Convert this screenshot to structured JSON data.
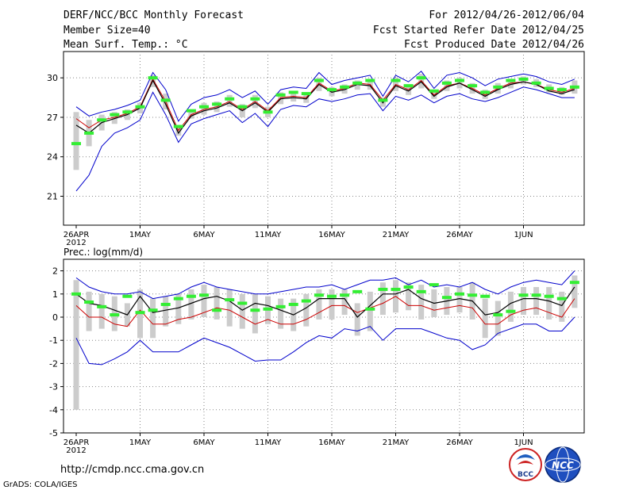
{
  "header": {
    "title": "DERF/NCC/BCC Monthly Forecast",
    "member_size": "Member Size=40",
    "variable": "Mean Surf. Temp.: °C",
    "forecast_range": "For 2012/04/26-2012/06/04",
    "start_date": "Fcst Started Refer Date 2012/04/25",
    "produced_date": "Fcst Produced Date 2012/04/26"
  },
  "footer": {
    "url": "http://cmdp.ncc.cma.gov.cn",
    "credit": "GrADS: COLA/IGES",
    "logo1_text": "BCC",
    "logo2_text": "NCC"
  },
  "colors": {
    "envelope": "#0000cc",
    "median": "#cc0000",
    "mean": "#000000",
    "observed_marker": "#33ee33",
    "spread_box": "#cccccc",
    "grid": "#888888"
  },
  "chart_data": [
    {
      "type": "line",
      "title": "Mean Surf. Temp.: °C",
      "x_days": 40,
      "xtick_days": [
        0,
        5,
        10,
        15,
        20,
        25,
        30,
        35
      ],
      "xtick_labels": [
        "26APR",
        "1MAY",
        "6MAY",
        "11MAY",
        "16MAY",
        "21MAY",
        "26MAY",
        "1JUN"
      ],
      "x_year_label": "2012",
      "ylim": [
        18.8,
        32
      ],
      "yticks": [
        21,
        24,
        27,
        30
      ],
      "series": [
        {
          "name": "max",
          "values": [
            27.8,
            27.1,
            27.4,
            27.6,
            27.9,
            28.3,
            30.4,
            29.1,
            26.7,
            28.0,
            28.5,
            28.7,
            29.1,
            28.5,
            29.0,
            28.0,
            29.1,
            29.3,
            29.2,
            30.4,
            29.5,
            29.8,
            30.0,
            30.2,
            28.6,
            30.2,
            29.7,
            30.5,
            29.2,
            30.2,
            30.4,
            30.0,
            29.4,
            29.9,
            30.1,
            30.3,
            30.1,
            29.7,
            29.5,
            29.9
          ]
        },
        {
          "name": "min",
          "values": [
            21.4,
            22.6,
            24.8,
            25.8,
            26.2,
            26.8,
            28.9,
            27.2,
            25.1,
            26.5,
            26.9,
            27.2,
            27.5,
            26.6,
            27.3,
            26.3,
            27.6,
            27.9,
            27.8,
            28.4,
            28.2,
            28.4,
            28.7,
            28.8,
            27.5,
            28.6,
            28.3,
            28.7,
            28.1,
            28.6,
            28.8,
            28.4,
            28.2,
            28.5,
            28.9,
            29.3,
            29.1,
            28.8,
            28.5,
            28.5
          ]
        },
        {
          "name": "median",
          "values": [
            26.9,
            26.2,
            26.8,
            27.0,
            27.3,
            27.8,
            29.9,
            28.2,
            26.0,
            27.2,
            27.6,
            27.8,
            28.2,
            27.6,
            28.2,
            27.5,
            28.5,
            28.6,
            28.5,
            29.6,
            29.0,
            29.2,
            29.6,
            29.5,
            28.3,
            29.5,
            29.1,
            29.8,
            28.7,
            29.4,
            29.6,
            29.2,
            28.7,
            29.2,
            29.6,
            29.7,
            29.5,
            29.1,
            28.9,
            29.2
          ]
        },
        {
          "name": "mean",
          "values": [
            26.4,
            25.8,
            26.6,
            26.9,
            27.2,
            27.7,
            29.8,
            28.0,
            25.8,
            27.1,
            27.5,
            27.7,
            28.1,
            27.5,
            28.1,
            27.4,
            28.4,
            28.5,
            28.4,
            29.5,
            28.9,
            29.1,
            29.5,
            29.4,
            28.1,
            29.4,
            29.0,
            29.7,
            28.6,
            29.3,
            29.6,
            29.1,
            28.6,
            29.1,
            29.5,
            29.7,
            29.5,
            29.0,
            28.8,
            29.1
          ]
        },
        {
          "name": "observed",
          "values": [
            25.0,
            25.8,
            26.8,
            27.2,
            27.4,
            27.8,
            30.0,
            28.3,
            26.3,
            27.5,
            27.8,
            28.0,
            28.4,
            27.8,
            28.4,
            27.4,
            28.7,
            28.9,
            28.8,
            29.8,
            29.1,
            29.3,
            29.6,
            29.8,
            28.3,
            29.8,
            29.4,
            30.0,
            29.0,
            29.6,
            29.8,
            29.4,
            28.9,
            29.3,
            29.8,
            29.9,
            29.6,
            29.2,
            29.1,
            29.3
          ]
        },
        {
          "name": "spread_low",
          "values": [
            23.0,
            24.8,
            26.0,
            26.5,
            26.8,
            27.3,
            29.3,
            27.6,
            25.6,
            26.9,
            27.2,
            27.4,
            27.8,
            27.0,
            27.7,
            27.0,
            28.0,
            28.2,
            28.1,
            29.0,
            28.6,
            28.8,
            29.1,
            29.1,
            27.8,
            29.0,
            28.7,
            29.2,
            28.4,
            29.0,
            29.2,
            28.8,
            28.4,
            28.8,
            29.2,
            29.5,
            29.3,
            28.9,
            28.7,
            28.8
          ]
        },
        {
          "name": "spread_high",
          "values": [
            27.4,
            26.8,
            27.2,
            27.4,
            27.6,
            28.1,
            30.2,
            28.8,
            26.3,
            27.6,
            28.1,
            28.2,
            28.7,
            28.0,
            28.7,
            27.8,
            28.9,
            29.0,
            28.9,
            30.0,
            29.3,
            29.5,
            29.8,
            29.8,
            28.5,
            30.0,
            29.5,
            30.3,
            29.0,
            29.8,
            30.0,
            29.6,
            29.1,
            29.6,
            29.9,
            30.1,
            29.9,
            29.5,
            29.3,
            29.8
          ]
        }
      ]
    },
    {
      "type": "line",
      "title": "Prec.: log(mm/d)",
      "x_days": 40,
      "xtick_days": [
        0,
        5,
        10,
        15,
        20,
        25,
        30,
        35
      ],
      "xtick_labels": [
        "26APR",
        "1MAY",
        "6MAY",
        "11MAY",
        "16MAY",
        "21MAY",
        "26MAY",
        "1JUN"
      ],
      "x_year_label": "2012",
      "ylim": [
        -5,
        2.5
      ],
      "yticks": [
        -5,
        -4,
        -3,
        -2,
        -1,
        0,
        1,
        2
      ],
      "series": [
        {
          "name": "max",
          "values": [
            1.7,
            1.3,
            1.1,
            1.0,
            1.0,
            1.1,
            0.8,
            0.9,
            1.0,
            1.3,
            1.5,
            1.3,
            1.2,
            1.1,
            1.0,
            1.0,
            1.1,
            1.2,
            1.3,
            1.3,
            1.4,
            1.2,
            1.4,
            1.6,
            1.6,
            1.7,
            1.4,
            1.6,
            1.3,
            1.4,
            1.3,
            1.5,
            1.2,
            1.0,
            1.3,
            1.5,
            1.6,
            1.5,
            1.4,
            2.0
          ]
        },
        {
          "name": "min",
          "values": [
            -0.9,
            -2.0,
            -2.05,
            -1.8,
            -1.5,
            -1.0,
            -1.5,
            -1.5,
            -1.5,
            -1.2,
            -0.9,
            -1.1,
            -1.3,
            -1.6,
            -1.9,
            -1.85,
            -1.85,
            -1.5,
            -1.1,
            -0.8,
            -0.9,
            -0.5,
            -0.6,
            -0.4,
            -1.0,
            -0.5,
            -0.5,
            -0.5,
            -0.7,
            -0.9,
            -1.0,
            -1.4,
            -1.2,
            -0.7,
            -0.5,
            -0.3,
            -0.3,
            -0.6,
            -0.6,
            0.0
          ]
        },
        {
          "name": "median",
          "values": [
            0.5,
            0.0,
            0.0,
            -0.3,
            -0.4,
            0.3,
            -0.3,
            -0.3,
            -0.1,
            0.0,
            0.2,
            0.4,
            0.3,
            0.0,
            -0.3,
            -0.1,
            -0.3,
            -0.3,
            -0.1,
            0.2,
            0.5,
            0.5,
            0.2,
            0.4,
            0.6,
            0.9,
            0.5,
            0.5,
            0.3,
            0.4,
            0.5,
            0.4,
            -0.3,
            -0.3,
            0.1,
            0.3,
            0.4,
            0.2,
            0.0,
            0.8
          ]
        },
        {
          "name": "mean",
          "values": [
            1.0,
            0.6,
            0.5,
            0.3,
            0.1,
            0.9,
            0.2,
            0.3,
            0.4,
            0.6,
            0.8,
            0.9,
            0.7,
            0.3,
            0.6,
            0.5,
            0.3,
            0.1,
            0.4,
            0.8,
            0.8,
            0.8,
            0.0,
            0.5,
            1.0,
            1.0,
            1.2,
            0.8,
            0.6,
            0.7,
            0.8,
            0.7,
            0.1,
            0.2,
            0.6,
            0.8,
            0.8,
            0.7,
            0.5,
            1.3
          ]
        },
        {
          "name": "observed",
          "values": [
            1.0,
            0.65,
            0.45,
            0.1,
            0.9,
            0.2,
            0.3,
            0.55,
            0.8,
            0.9,
            0.95,
            0.3,
            0.75,
            0.6,
            0.3,
            0.35,
            0.45,
            0.55,
            0.7,
            0.95,
            0.9,
            0.95,
            1.1,
            0.35,
            1.2,
            1.2,
            1.3,
            1.1,
            1.4,
            0.85,
            1.0,
            0.95,
            0.9,
            0.1,
            0.25,
            0.95,
            0.95,
            0.9,
            0.8,
            1.5
          ]
        },
        {
          "name": "spread_low",
          "values": [
            -4.0,
            -0.6,
            -0.5,
            -0.6,
            -0.4,
            -0.9,
            -0.9,
            -0.4,
            -0.3,
            -0.1,
            0.0,
            -0.1,
            -0.4,
            -0.5,
            -0.7,
            -0.3,
            -0.5,
            -0.6,
            -0.4,
            -0.1,
            -0.1,
            0.1,
            -0.8,
            -0.6,
            0.1,
            0.2,
            0.3,
            -0.1,
            0.0,
            0.1,
            0.2,
            -0.1,
            -0.9,
            -0.8,
            -0.2,
            0.1,
            0.1,
            -0.1,
            -0.2,
            0.4
          ]
        },
        {
          "name": "spread_high",
          "values": [
            1.6,
            1.1,
            1.0,
            0.9,
            0.6,
            1.2,
            0.8,
            0.9,
            1.0,
            1.2,
            1.4,
            1.3,
            1.2,
            1.0,
            1.0,
            0.9,
            0.8,
            0.8,
            1.0,
            1.2,
            1.2,
            1.2,
            0.6,
            1.1,
            1.5,
            1.6,
            1.5,
            1.4,
            1.2,
            1.3,
            1.3,
            1.5,
            0.8,
            0.7,
            1.1,
            1.3,
            1.3,
            1.3,
            1.1,
            1.8
          ]
        }
      ]
    }
  ]
}
